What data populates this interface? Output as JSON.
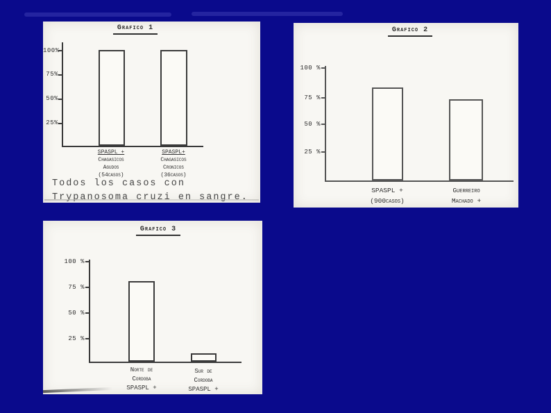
{
  "slide": {
    "background_color": "#0a0a8c",
    "panel_color": "#f8f7f3",
    "ink_color": "#3a3a3a"
  },
  "charts": [
    {
      "title": "Grafico 1",
      "y_ticks": [
        "100%",
        "75%",
        "50%",
        "25%"
      ],
      "bars": [
        {
          "value": 100,
          "label_lines": [
            "SPASPL +",
            "Chagasicos",
            "Agudos",
            "(54casos)"
          ]
        },
        {
          "value": 100,
          "label_lines": [
            "SPASPL+",
            "Chagasicos",
            "Cronicos",
            "(36casos)"
          ]
        }
      ],
      "caption_lines": [
        "Todos los casos con",
        "Trypanosoma cruzi en sangre."
      ]
    },
    {
      "title": "Grafico 2",
      "y_ticks": [
        "100 %",
        "75 %",
        "50 %",
        "25 %"
      ],
      "bars": [
        {
          "value": 82,
          "label_lines": [
            "SPASPL +",
            "(900casos)"
          ]
        },
        {
          "value": 72,
          "label_lines": [
            "Guerreiro",
            "Machado +"
          ]
        }
      ]
    },
    {
      "title": "Grafico 3",
      "y_ticks": [
        "100 %",
        "75 %",
        "50 %",
        "25 %"
      ],
      "bars": [
        {
          "value": 80,
          "label_lines": [
            "Norte de",
            "Cordoba",
            "SPASPL +"
          ]
        },
        {
          "value": 8,
          "label_lines": [
            "Sur de",
            "Cordoba",
            "SPASPL +"
          ]
        }
      ]
    }
  ],
  "chart_data": [
    {
      "type": "bar",
      "title": "Grafico 1",
      "categories": [
        "SPASPL + Chagasicos Agudos (54 casos)",
        "SPASPL+ Chagasicos Cronicos (36 casos)"
      ],
      "values": [
        100,
        100
      ],
      "xlabel": "",
      "ylabel": "%",
      "ylim": [
        0,
        100
      ],
      "yticks": [
        25,
        50,
        75,
        100
      ],
      "grid": false,
      "annotation": "Todos los casos con Trypanosoma cruzi en sangre."
    },
    {
      "type": "bar",
      "title": "Grafico 2",
      "categories": [
        "SPASPL + (900 casos)",
        "Guerreiro Machado +"
      ],
      "values": [
        82,
        72
      ],
      "xlabel": "",
      "ylabel": "%",
      "ylim": [
        0,
        100
      ],
      "yticks": [
        25,
        50,
        75,
        100
      ],
      "grid": false
    },
    {
      "type": "bar",
      "title": "Grafico 3",
      "categories": [
        "Norte de Cordoba SPASPL +",
        "Sur de Cordoba SPASPL +"
      ],
      "values": [
        80,
        8
      ],
      "xlabel": "",
      "ylabel": "%",
      "ylim": [
        0,
        100
      ],
      "yticks": [
        25,
        50,
        75,
        100
      ],
      "grid": false
    }
  ]
}
